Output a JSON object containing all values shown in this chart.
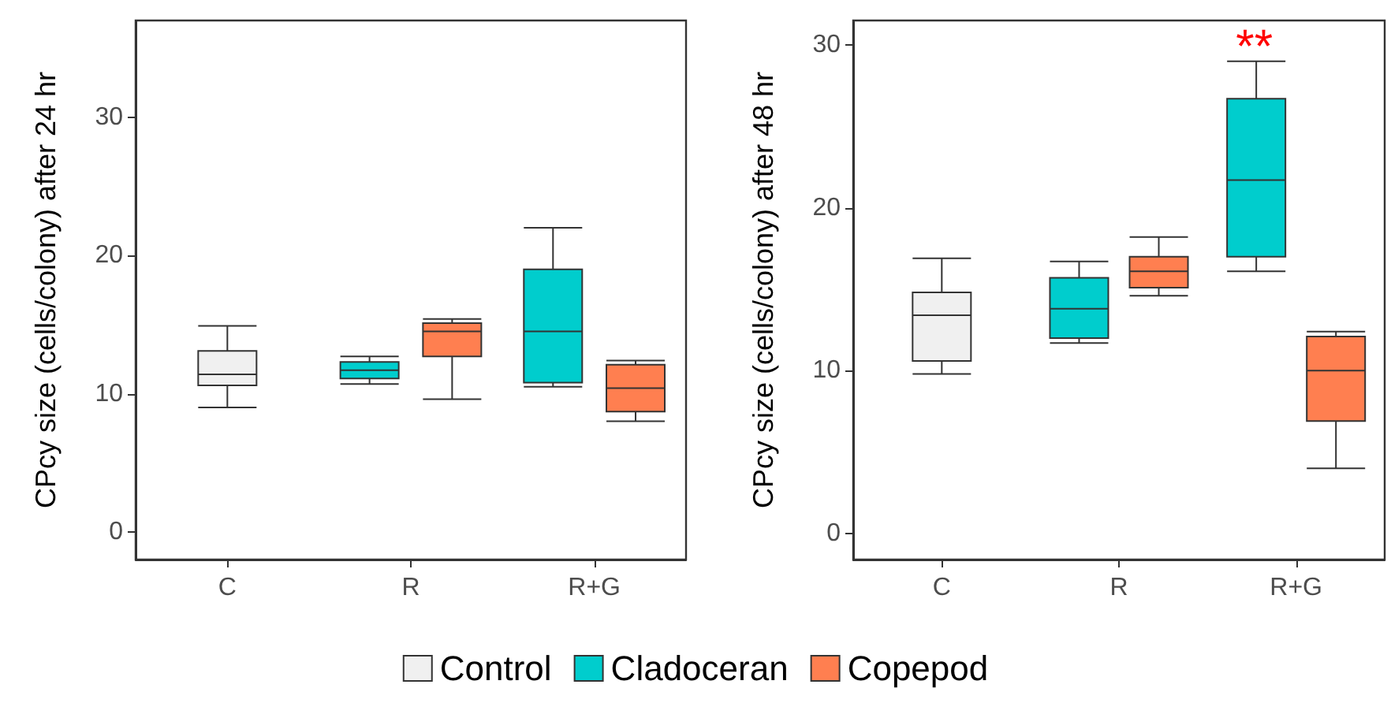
{
  "chart_data": [
    {
      "type": "box",
      "ylabel": "CPcy size (cells/colony) after 24 hr",
      "categories": [
        "C",
        "R",
        "R+G"
      ],
      "ylim": [
        -2,
        37
      ],
      "yticks": [
        0,
        10,
        20,
        30
      ],
      "grid": false,
      "legend": "bottom",
      "series": [
        {
          "name": "Control",
          "color": "#f0f0f0",
          "boxes": [
            {
              "low": 9.0,
              "q1": 10.6,
              "median": 11.4,
              "q3": 13.1,
              "high": 14.9
            },
            null,
            null
          ]
        },
        {
          "name": "Cladoceran",
          "color": "#00cdcd",
          "boxes": [
            null,
            {
              "low": 10.7,
              "q1": 11.1,
              "median": 11.7,
              "q3": 12.3,
              "high": 12.7
            },
            {
              "low": 10.5,
              "q1": 10.8,
              "median": 14.5,
              "q3": 19.0,
              "high": 22.0
            }
          ]
        },
        {
          "name": "Copepod",
          "color": "#ff7f50",
          "boxes": [
            null,
            {
              "low": 9.6,
              "q1": 12.7,
              "median": 14.5,
              "q3": 15.1,
              "high": 15.4
            },
            {
              "low": 8.0,
              "q1": 8.7,
              "median": 10.4,
              "q3": 12.1,
              "high": 12.4
            }
          ]
        }
      ]
    },
    {
      "type": "box",
      "ylabel": "CPcy size (cells/colony) after 48 hr",
      "categories": [
        "C",
        "R",
        "R+G"
      ],
      "ylim": [
        -1.6,
        31.5
      ],
      "yticks": [
        0,
        10,
        20,
        30
      ],
      "grid": false,
      "annotations": [
        "**"
      ],
      "series": [
        {
          "color": "#f0f0f0",
          "boxes": [
            {
              "low": 9.8,
              "q1": 10.6,
              "median": 13.4,
              "q3": 14.8,
              "high": 16.9
            },
            null,
            null
          ]
        },
        {
          "color": "#00cdcd",
          "boxes": [
            null,
            {
              "low": 11.7,
              "q1": 12.0,
              "median": 13.8,
              "q3": 15.7,
              "high": 16.7
            },
            {
              "low": 16.1,
              "q1": 17.0,
              "median": 21.7,
              "q3": 26.7,
              "high": 29.0
            }
          ]
        },
        {
          "color": "#ff7f50",
          "boxes": [
            null,
            {
              "low": 14.6,
              "q1": 15.1,
              "median": 16.1,
              "q3": 17.0,
              "high": 18.2
            },
            {
              "low": 4.0,
              "q1": 6.9,
              "median": 10.0,
              "q3": 12.1,
              "high": 12.4
            }
          ]
        }
      ]
    }
  ]
}
